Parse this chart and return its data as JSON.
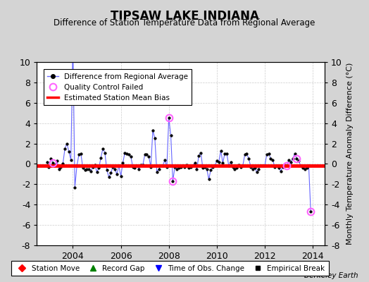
{
  "title": "TIPSAW LAKE INDIANA",
  "subtitle": "Difference of Station Temperature Data from Regional Average",
  "ylabel": "Monthly Temperature Anomaly Difference (°C)",
  "bias": -0.2,
  "ylim": [
    -8,
    10
  ],
  "xlim": [
    2002.5,
    2014.5
  ],
  "xticks": [
    2004,
    2006,
    2008,
    2010,
    2012,
    2014
  ],
  "yticks": [
    -8,
    -6,
    -4,
    -2,
    0,
    2,
    4,
    6,
    8,
    10
  ],
  "fig_bg": "#d4d4d4",
  "plot_bg": "#ffffff",
  "line_color": "#6666ff",
  "bias_color": "#ff0000",
  "qc_color": "#ff66ff",
  "data": [
    [
      2002.917,
      0.2
    ],
    [
      2003.0,
      -0.3
    ],
    [
      2003.083,
      0.5
    ],
    [
      2003.167,
      0.1
    ],
    [
      2003.25,
      -0.1
    ],
    [
      2003.333,
      0.3
    ],
    [
      2003.417,
      -0.5
    ],
    [
      2003.5,
      -0.3
    ],
    [
      2003.583,
      0.0
    ],
    [
      2003.667,
      1.5
    ],
    [
      2003.75,
      2.0
    ],
    [
      2003.833,
      1.2
    ],
    [
      2003.917,
      0.4
    ],
    [
      2004.0,
      12.0
    ],
    [
      2004.083,
      -2.3
    ],
    [
      2004.167,
      -0.2
    ],
    [
      2004.25,
      0.9
    ],
    [
      2004.333,
      1.0
    ],
    [
      2004.417,
      -0.4
    ],
    [
      2004.5,
      -0.6
    ],
    [
      2004.583,
      -0.5
    ],
    [
      2004.667,
      -0.5
    ],
    [
      2004.75,
      -0.7
    ],
    [
      2004.833,
      -0.3
    ],
    [
      2004.917,
      -0.1
    ],
    [
      2005.0,
      -0.8
    ],
    [
      2005.083,
      -0.4
    ],
    [
      2005.167,
      0.6
    ],
    [
      2005.25,
      1.5
    ],
    [
      2005.333,
      1.1
    ],
    [
      2005.417,
      -0.6
    ],
    [
      2005.5,
      -1.3
    ],
    [
      2005.583,
      -0.9
    ],
    [
      2005.667,
      -0.3
    ],
    [
      2005.75,
      -0.5
    ],
    [
      2005.833,
      -1.0
    ],
    [
      2005.917,
      -0.2
    ],
    [
      2006.0,
      -1.2
    ],
    [
      2006.083,
      0.1
    ],
    [
      2006.167,
      1.1
    ],
    [
      2006.25,
      1.0
    ],
    [
      2006.333,
      0.9
    ],
    [
      2006.417,
      0.7
    ],
    [
      2006.5,
      -0.3
    ],
    [
      2006.583,
      -0.4
    ],
    [
      2006.667,
      -0.2
    ],
    [
      2006.75,
      -0.5
    ],
    [
      2006.833,
      -0.1
    ],
    [
      2006.917,
      -0.1
    ],
    [
      2007.0,
      0.9
    ],
    [
      2007.083,
      0.9
    ],
    [
      2007.167,
      0.7
    ],
    [
      2007.25,
      -0.3
    ],
    [
      2007.333,
      3.3
    ],
    [
      2007.417,
      2.5
    ],
    [
      2007.5,
      -0.8
    ],
    [
      2007.583,
      -0.5
    ],
    [
      2007.667,
      -0.2
    ],
    [
      2007.75,
      -0.2
    ],
    [
      2007.833,
      0.4
    ],
    [
      2007.917,
      -0.3
    ],
    [
      2008.0,
      4.5
    ],
    [
      2008.083,
      2.8
    ],
    [
      2008.167,
      -1.7
    ],
    [
      2008.25,
      -0.3
    ],
    [
      2008.333,
      -0.5
    ],
    [
      2008.417,
      -0.4
    ],
    [
      2008.5,
      -0.3
    ],
    [
      2008.583,
      -0.2
    ],
    [
      2008.667,
      -0.3
    ],
    [
      2008.75,
      -0.1
    ],
    [
      2008.833,
      -0.4
    ],
    [
      2008.917,
      -0.3
    ],
    [
      2009.0,
      -0.2
    ],
    [
      2009.083,
      0.1
    ],
    [
      2009.167,
      -0.5
    ],
    [
      2009.25,
      0.8
    ],
    [
      2009.333,
      1.1
    ],
    [
      2009.417,
      -0.4
    ],
    [
      2009.5,
      -0.3
    ],
    [
      2009.583,
      -0.5
    ],
    [
      2009.667,
      -1.5
    ],
    [
      2009.75,
      -0.6
    ],
    [
      2009.833,
      -0.3
    ],
    [
      2009.917,
      -0.2
    ],
    [
      2010.0,
      0.3
    ],
    [
      2010.083,
      0.2
    ],
    [
      2010.167,
      1.3
    ],
    [
      2010.25,
      0.1
    ],
    [
      2010.333,
      1.0
    ],
    [
      2010.417,
      1.0
    ],
    [
      2010.5,
      -0.2
    ],
    [
      2010.583,
      0.2
    ],
    [
      2010.667,
      -0.3
    ],
    [
      2010.75,
      -0.5
    ],
    [
      2010.833,
      -0.4
    ],
    [
      2010.917,
      -0.1
    ],
    [
      2011.0,
      -0.3
    ],
    [
      2011.083,
      -0.2
    ],
    [
      2011.167,
      0.9
    ],
    [
      2011.25,
      1.0
    ],
    [
      2011.333,
      0.5
    ],
    [
      2011.417,
      -0.3
    ],
    [
      2011.5,
      -0.5
    ],
    [
      2011.583,
      -0.4
    ],
    [
      2011.667,
      -0.8
    ],
    [
      2011.75,
      -0.5
    ],
    [
      2011.833,
      -0.2
    ],
    [
      2011.917,
      -0.2
    ],
    [
      2012.0,
      -0.2
    ],
    [
      2012.083,
      0.9
    ],
    [
      2012.167,
      1.0
    ],
    [
      2012.25,
      0.5
    ],
    [
      2012.333,
      0.4
    ],
    [
      2012.417,
      -0.3
    ],
    [
      2012.5,
      -0.2
    ],
    [
      2012.583,
      -0.4
    ],
    [
      2012.667,
      -0.7
    ],
    [
      2012.75,
      -0.3
    ],
    [
      2012.833,
      -0.1
    ],
    [
      2012.917,
      -0.2
    ],
    [
      2013.0,
      0.4
    ],
    [
      2013.083,
      0.2
    ],
    [
      2013.167,
      0.5
    ],
    [
      2013.25,
      1.0
    ],
    [
      2013.333,
      0.5
    ],
    [
      2013.417,
      0.3
    ],
    [
      2013.5,
      -0.2
    ],
    [
      2013.583,
      -0.4
    ],
    [
      2013.667,
      -0.5
    ],
    [
      2013.75,
      -0.4
    ],
    [
      2013.833,
      -0.2
    ],
    [
      2013.917,
      -4.7
    ]
  ],
  "qc_failed": [
    [
      2003.167,
      0.1
    ],
    [
      2008.0,
      4.5
    ],
    [
      2008.167,
      -1.7
    ],
    [
      2012.917,
      -0.2
    ],
    [
      2013.333,
      0.5
    ],
    [
      2013.917,
      -4.7
    ]
  ]
}
